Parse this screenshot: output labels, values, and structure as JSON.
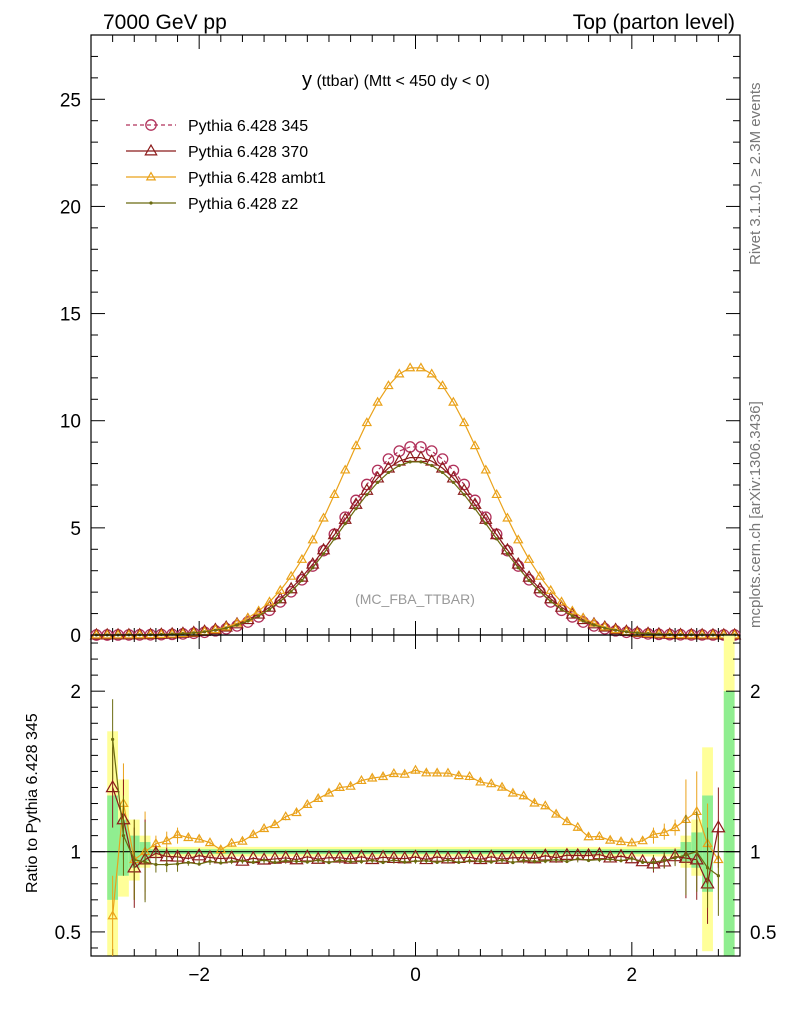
{
  "header": {
    "left": "7000 GeV pp",
    "right": "Top (parton level)"
  },
  "side_text": {
    "top": "Rivet 3.1.10, ≥ 2.3M events",
    "bottom": "mcplots.cern.ch [arXiv:1306.3436]"
  },
  "chart_data": {
    "type": "line",
    "title": "y (ttbar) (Mtt < 450 dy < 0)",
    "title_main": "y",
    "title_rest": " (ttbar) (Mtt < 450 dy < 0)",
    "watermark": "(MC_FBA_TTBAR)",
    "ylabel_ratio": "Ratio to Pythia 6.428 345",
    "main_axes": {
      "xlim": [
        -3.0,
        3.0
      ],
      "ylim": [
        0,
        28
      ],
      "yticks": [
        0,
        5,
        10,
        15,
        20,
        25
      ],
      "ytick_labels": [
        "0",
        "5",
        "10",
        "15",
        "20",
        "25"
      ]
    },
    "ratio_axes": {
      "xlim": [
        -3.0,
        3.0
      ],
      "ylim": [
        0.35,
        2.35
      ],
      "xticks": [
        -2,
        0,
        2
      ],
      "xtick_labels": [
        "−2",
        "0",
        "2"
      ],
      "yticks": [
        0.5,
        1,
        2
      ],
      "ytick_labels": [
        "0.5",
        "1",
        "2"
      ]
    },
    "legend_position": "top-left",
    "series": [
      {
        "name": "Pythia 6.428 345",
        "color": "#b0305a",
        "marker": "circle-open",
        "dashed": true,
        "peak": 8.8,
        "sigma": 0.67
      },
      {
        "name": "Pythia 6.428 370",
        "color": "#8b1a1a",
        "marker": "triangle-open",
        "dashed": false,
        "peak": 8.3,
        "sigma": 0.7
      },
      {
        "name": "Pythia 6.428 ambt1",
        "color": "#eaa21a",
        "marker": "triangle-open-small",
        "dashed": false,
        "peak": 12.5,
        "sigma": 0.66
      },
      {
        "name": "Pythia 6.428 z2",
        "color": "#6b6b10",
        "marker": "dot",
        "dashed": false,
        "peak": 8.1,
        "sigma": 0.69
      }
    ],
    "ratio_samples": {
      "370": [
        [
          -2.8,
          1.4
        ],
        [
          -2.7,
          1.2
        ],
        [
          -2.6,
          0.9
        ],
        [
          -2.5,
          0.95
        ],
        [
          -2.4,
          0.99
        ],
        [
          -2.2,
          0.96
        ],
        [
          -2.0,
          0.97
        ],
        [
          -1.6,
          0.95
        ],
        [
          -1.0,
          0.96
        ],
        [
          0,
          0.96
        ],
        [
          1.0,
          0.96
        ],
        [
          1.6,
          0.98
        ],
        [
          2.0,
          0.96
        ],
        [
          2.2,
          0.92
        ],
        [
          2.4,
          0.97
        ],
        [
          2.6,
          0.95
        ],
        [
          2.7,
          0.8
        ],
        [
          2.8,
          1.15
        ]
      ],
      "ambt1": [
        [
          -2.8,
          0.6
        ],
        [
          -2.7,
          1.3
        ],
        [
          -2.6,
          0.95
        ],
        [
          -2.4,
          1.05
        ],
        [
          -2.2,
          1.1
        ],
        [
          -2.0,
          1.08
        ],
        [
          -1.8,
          1.02
        ],
        [
          -1.6,
          1.07
        ],
        [
          -1.2,
          1.21
        ],
        [
          -0.8,
          1.37
        ],
        [
          -0.4,
          1.46
        ],
        [
          0,
          1.5
        ],
        [
          0.4,
          1.48
        ],
        [
          0.8,
          1.4
        ],
        [
          1.2,
          1.28
        ],
        [
          1.6,
          1.1
        ],
        [
          2.0,
          1.05
        ],
        [
          2.2,
          1.1
        ],
        [
          2.4,
          1.15
        ],
        [
          2.6,
          1.25
        ],
        [
          2.7,
          1.05
        ],
        [
          2.8,
          0.95
        ]
      ],
      "z2": [
        [
          -2.8,
          1.7
        ],
        [
          -2.7,
          1.1
        ],
        [
          -2.6,
          0.95
        ],
        [
          -2.4,
          0.92
        ],
        [
          -2.0,
          0.93
        ],
        [
          -1.6,
          0.94
        ],
        [
          -1.0,
          0.94
        ],
        [
          0,
          0.94
        ],
        [
          1.0,
          0.94
        ],
        [
          1.6,
          0.95
        ],
        [
          2.0,
          0.95
        ],
        [
          2.2,
          0.93
        ],
        [
          2.4,
          0.96
        ],
        [
          2.6,
          1.0
        ],
        [
          2.7,
          0.9
        ],
        [
          2.8,
          0.85
        ]
      ]
    },
    "bands": [
      {
        "x": [
          -2.85,
          -2.75
        ],
        "yellow": [
          0.35,
          1.75
        ],
        "green": [
          0.7,
          1.35
        ]
      },
      {
        "x": [
          -2.75,
          -2.65
        ],
        "yellow": [
          0.72,
          1.45
        ],
        "green": [
          0.85,
          1.2
        ]
      },
      {
        "x": [
          -2.65,
          -2.55
        ],
        "yellow": [
          0.82,
          1.2
        ],
        "green": [
          0.9,
          1.1
        ]
      },
      {
        "x": [
          -2.55,
          -2.45
        ],
        "yellow": [
          0.9,
          1.1
        ],
        "green": [
          0.94,
          1.06
        ]
      },
      {
        "x": [
          -2.45,
          2.45
        ],
        "yellow": [
          0.97,
          1.03
        ],
        "green": [
          0.985,
          1.015
        ]
      },
      {
        "x": [
          2.45,
          2.55
        ],
        "yellow": [
          0.9,
          1.1
        ],
        "green": [
          0.94,
          1.06
        ]
      },
      {
        "x": [
          2.55,
          2.65
        ],
        "yellow": [
          0.85,
          1.2
        ],
        "green": [
          0.9,
          1.12
        ]
      },
      {
        "x": [
          2.65,
          2.75
        ],
        "yellow": [
          0.38,
          1.65
        ],
        "green": [
          0.75,
          1.35
        ]
      },
      {
        "x": [
          2.85,
          2.95
        ],
        "yellow": [
          0.35,
          2.35
        ],
        "green": [
          0.35,
          2.0
        ]
      }
    ]
  }
}
